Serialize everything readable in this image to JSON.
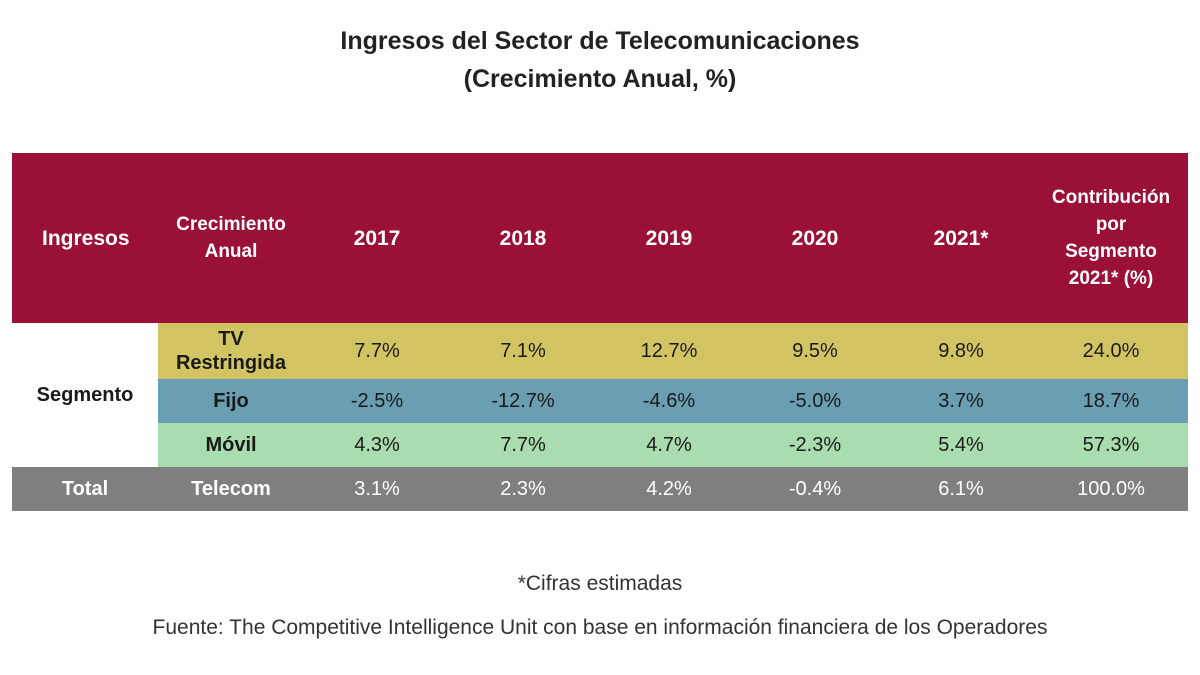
{
  "title_line1": "Ingresos del Sector de Telecomunicaciones",
  "title_line2": "(Crecimiento Anual, %)",
  "colors": {
    "header": "#9b1037",
    "tv_restringida": "#d3c463",
    "fijo": "#6a9eb2",
    "movil": "#a9dcae",
    "total": "#7f7f7f"
  },
  "chart_data": {
    "type": "table",
    "headers": {
      "ingresos": "Ingresos",
      "crecimiento_l1": "Crecimiento",
      "crecimiento_l2": "Anual",
      "y2017": "2017",
      "y2018": "2018",
      "y2019": "2019",
      "y2020": "2020",
      "y2021": "2021*",
      "contrib_l1": "Contribución",
      "contrib_l2": "por",
      "contrib_l3": "Segmento",
      "contrib_l4": "2021* (%)"
    },
    "group_label": "Segmento",
    "rows": {
      "tv": {
        "name_l1": "TV",
        "name_l2": "Restringida",
        "v2017": "7.7%",
        "v2018": "7.1%",
        "v2019": "12.7%",
        "v2020": "9.5%",
        "v2021": "9.8%",
        "contrib": "24.0%"
      },
      "fijo": {
        "name": "Fijo",
        "v2017": "-2.5%",
        "v2018": "-12.7%",
        "v2019": "-4.6%",
        "v2020": "-5.0%",
        "v2021": "3.7%",
        "contrib": "18.7%"
      },
      "movil": {
        "name": "Móvil",
        "v2017": "4.3%",
        "v2018": "7.7%",
        "v2019": "4.7%",
        "v2020": "-2.3%",
        "v2021": "5.4%",
        "contrib": "57.3%"
      },
      "total": {
        "label": "Total",
        "name": "Telecom",
        "v2017": "3.1%",
        "v2018": "2.3%",
        "v2019": "4.2%",
        "v2020": "-0.4%",
        "v2021": "6.1%",
        "contrib": "100.0%"
      }
    }
  },
  "footnote": "*Cifras estimadas",
  "source": "Fuente: The Competitive Intelligence Unit con base en información financiera de los Operadores"
}
